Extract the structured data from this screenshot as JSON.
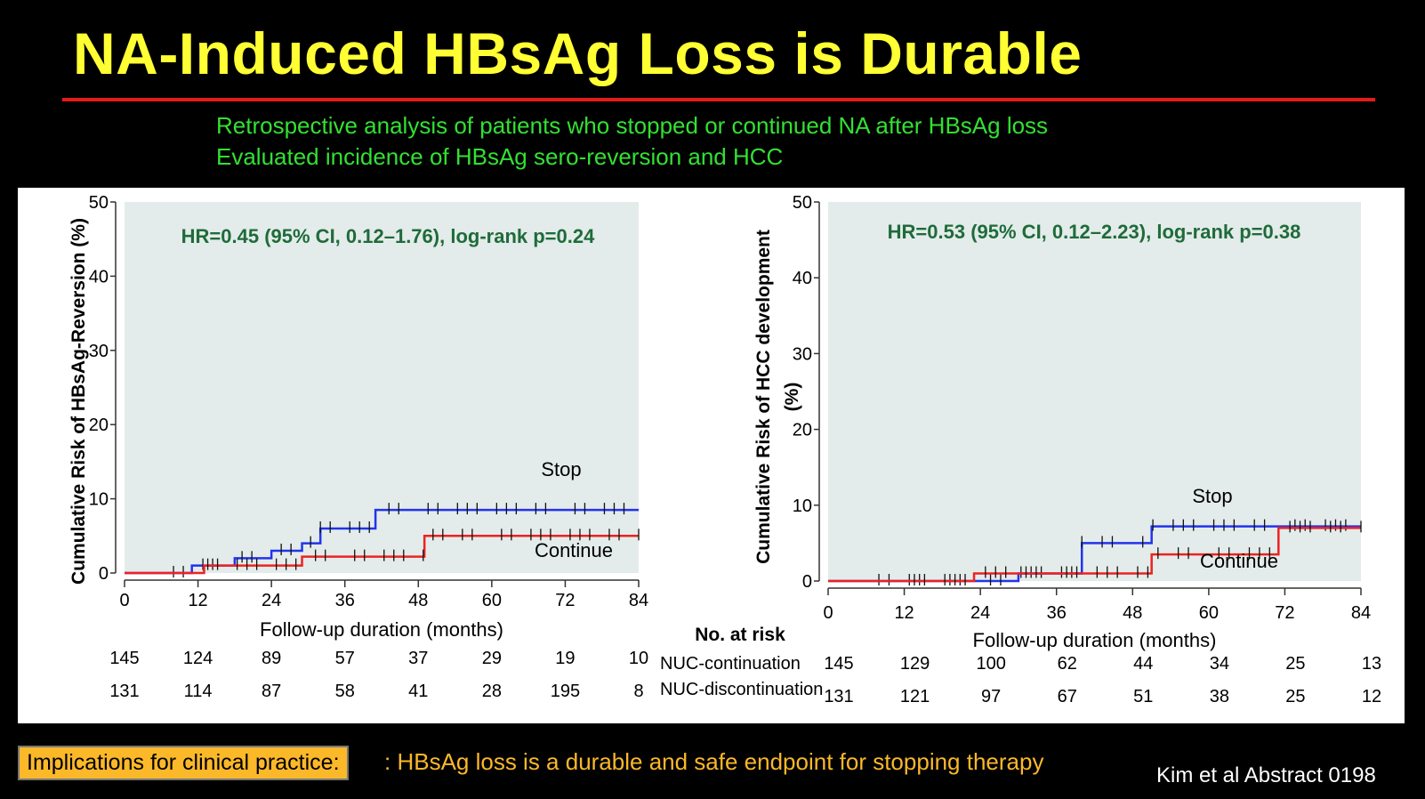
{
  "slide": {
    "title": "NA-Induced HBsAg Loss is Durable",
    "subtitle_lines": [
      "Retrospective analysis of patients who stopped or continued NA after HBsAg loss",
      "Evaluated incidence of HBsAg sero-reversion and HCC"
    ],
    "implications_label": "Implications for clinical practice:",
    "implications_text": ": HBsAg loss is a durable and safe endpoint for stopping therapy",
    "citation": "Kim et al Abstract 0198",
    "colors": {
      "title": "#ffff33",
      "subtitle": "#33e033",
      "rule": "#e51b1b",
      "footer_box": "#fbb829",
      "stop_line": "#2233ee",
      "continue_line": "#ee2222",
      "hr_text": "#1f6b3a",
      "plot_bg": "#e3ecea"
    }
  },
  "chart_data": [
    {
      "type": "line",
      "subtype": "kaplan-meier-cumulative",
      "ylabel": "Cumulative Risk of HBsAg-Reversion (%)",
      "xlabel": "Follow-up duration (months)",
      "annotation": "HR=0.45 (95% CI, 0.12–1.76), log-rank p=0.24",
      "xlim": [
        0,
        84
      ],
      "ylim": [
        0,
        50
      ],
      "xticks": [
        0,
        12,
        24,
        36,
        48,
        60,
        72,
        84
      ],
      "yticks": [
        0,
        10,
        20,
        30,
        40,
        50
      ],
      "series": [
        {
          "name": "Stop",
          "color": "#2233ee",
          "steps": [
            [
              0,
              0
            ],
            [
              10,
              0
            ],
            [
              11,
              1
            ],
            [
              17,
              1
            ],
            [
              18,
              2
            ],
            [
              23,
              2
            ],
            [
              24,
              3
            ],
            [
              28,
              3
            ],
            [
              29,
              4
            ],
            [
              31,
              4
            ],
            [
              32,
              6
            ],
            [
              40,
              6
            ],
            [
              41,
              8.5
            ],
            [
              84,
              8.5
            ]
          ]
        },
        {
          "name": "Continue",
          "color": "#ee2222",
          "steps": [
            [
              0,
              0
            ],
            [
              12,
              0
            ],
            [
              13,
              1
            ],
            [
              28,
              1
            ],
            [
              29,
              2.2
            ],
            [
              48,
              2.2
            ],
            [
              49,
              5
            ],
            [
              84,
              5
            ]
          ]
        }
      ],
      "risk_table": {
        "label": "",
        "rows": [
          {
            "name": "",
            "values": [
              "145",
              "124",
              "89",
              "57",
              "37",
              "29",
              "19",
              "10"
            ]
          },
          {
            "name": "",
            "values": [
              "131",
              "114",
              "87",
              "58",
              "41",
              "28",
              "195",
              "8"
            ]
          }
        ]
      }
    },
    {
      "type": "line",
      "subtype": "kaplan-meier-cumulative",
      "ylabel_lines": [
        "Cumulative Risk of HCC development",
        "(%)"
      ],
      "xlabel": "Follow-up duration (months)",
      "annotation": "HR=0.53 (95% CI, 0.12–2.23), log-rank p=0.38",
      "xlim": [
        0,
        84
      ],
      "ylim": [
        0,
        50
      ],
      "xticks": [
        0,
        12,
        24,
        36,
        48,
        60,
        72,
        84
      ],
      "yticks": [
        0,
        10,
        20,
        30,
        40,
        50
      ],
      "series": [
        {
          "name": "Stop",
          "color": "#2233ee",
          "steps": [
            [
              0,
              0
            ],
            [
              24,
              0
            ],
            [
              30,
              1
            ],
            [
              39,
              1
            ],
            [
              40,
              5
            ],
            [
              50,
              5
            ],
            [
              51,
              7.2
            ],
            [
              84,
              7.2
            ]
          ]
        },
        {
          "name": "Continue",
          "color": "#ee2222",
          "steps": [
            [
              0,
              0
            ],
            [
              22,
              0
            ],
            [
              23,
              1
            ],
            [
              50,
              1
            ],
            [
              51,
              3.5
            ],
            [
              70,
              3.5
            ],
            [
              71,
              7
            ],
            [
              84,
              7
            ]
          ]
        }
      ],
      "risk_table": {
        "label": "No. at risk",
        "rows": [
          {
            "name": "NUC-continuation",
            "values": [
              "145",
              "129",
              "100",
              "62",
              "44",
              "34",
              "25",
              "13"
            ]
          },
          {
            "name": "NUC-discontinuation",
            "values": [
              "131",
              "121",
              "97",
              "67",
              "51",
              "38",
              "25",
              "12"
            ]
          }
        ]
      }
    }
  ]
}
